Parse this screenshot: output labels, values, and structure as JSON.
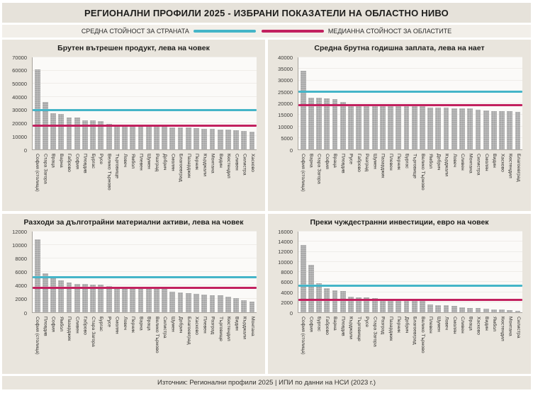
{
  "page": {
    "title": "РЕГИОНАЛНИ ПРОФИЛИ 2025 - ИЗБРАНИ ПОКАЗАТЕЛИ НА ОБЛАСТНО НИВО",
    "source": "Източник: Регионални профили 2025 | ИПИ по данни на НСИ (2023 г.)"
  },
  "legend": {
    "average_label": "СРЕДНА СТОЙНОСТ ЗА СТРАНАТА",
    "median_label": "МЕДИАННА СТОЙНОСТ ЗА ОБЛАСТИТЕ",
    "average_color": "#45b5c8",
    "median_color": "#c2215f"
  },
  "colors": {
    "bar": "#a7a7a7",
    "panel_bg": "#e9e5dd",
    "plot_bg": "#fbfaf8"
  },
  "chart_data": [
    {
      "type": "bar",
      "title": "Брутен вътрешен продукт, лева на човек",
      "ylim": [
        0,
        70000
      ],
      "ytick_step": 10000,
      "average_line": 29000,
      "median_line": 17000,
      "legend_position": "top",
      "grid": false,
      "categories": [
        "София (столица)",
        "Стара Загора",
        "Враца",
        "Варна",
        "Габрово",
        "София",
        "Пловдив",
        "Бургас",
        "Русе",
        "Велико Търново",
        "Търговище",
        "Ловеч",
        "Ямбол",
        "Плевен",
        "Шумен",
        "Разград",
        "Добрич",
        "Смолян",
        "Благоевград",
        "Пазарджик",
        "Перник",
        "Кърджали",
        "Монтана",
        "Видин",
        "Кюстендил",
        "Сливен",
        "Силистра",
        "Хасково"
      ],
      "values": [
        61000,
        36000,
        27500,
        27000,
        24500,
        24000,
        22200,
        22000,
        21500,
        19500,
        18000,
        17300,
        17200,
        17100,
        17100,
        17000,
        17000,
        16900,
        16900,
        16800,
        16000,
        15800,
        15500,
        15000,
        14900,
        14800,
        13800,
        13300
      ]
    },
    {
      "type": "bar",
      "title": "Средна брутна годишна заплата, лева на нает",
      "ylim": [
        0,
        40000
      ],
      "ytick_step": 5000,
      "average_line": 24700,
      "median_line": 18850,
      "legend_position": "top",
      "grid": false,
      "categories": [
        "София (столица)",
        "Варна",
        "Стара Загора",
        "София",
        "Враца",
        "Пловдив",
        "Русе",
        "Габрово",
        "Разград",
        "Шумен",
        "Пазарджик",
        "Плевен",
        "Перник",
        "Бургас",
        "Търговище",
        "Велико Търново",
        "Ямбол",
        "Добрич",
        "Кърджали",
        "Ловеч",
        "Сливен",
        "Монтана",
        "Силистра",
        "Смолян",
        "Видин",
        "Хасково",
        "Кюстендил",
        "Благоевград"
      ],
      "values": [
        34300,
        22600,
        22400,
        22100,
        21900,
        20600,
        19800,
        19200,
        19100,
        19100,
        19000,
        19000,
        19000,
        18900,
        18900,
        18800,
        18300,
        18200,
        18100,
        18000,
        17900,
        17800,
        17100,
        16900,
        16700,
        16600,
        16500,
        16200
      ]
    },
    {
      "type": "bar",
      "title": "Разходи за дълготрайни материални активи, лева на човек",
      "ylim": [
        0,
        12000
      ],
      "ytick_step": 2000,
      "average_line": 5100,
      "median_line": 3500,
      "legend_position": "top",
      "grid": false,
      "categories": [
        "София (столица)",
        "Пловдив",
        "София",
        "Ямбол",
        "Пазарджик",
        "Сливен",
        "Габрово",
        "Стара Загора",
        "Бургас",
        "Русе",
        "Смолян",
        "Ловеч",
        "Перник",
        "Варна",
        "Враца",
        "Велико Търново",
        "Силистра",
        "Шумен",
        "Добрич",
        "Благоевград",
        "Хасково",
        "Плевен",
        "Разград",
        "Търговище",
        "Кюстендил",
        "Видин",
        "Кърджали",
        "Монтана"
      ],
      "values": [
        10800,
        5800,
        5200,
        4700,
        4400,
        4250,
        4200,
        4150,
        4100,
        3900,
        3700,
        3550,
        3550,
        3500,
        3500,
        3500,
        3450,
        3050,
        3000,
        2800,
        2700,
        2650,
        2550,
        2500,
        2350,
        2150,
        1750,
        1550
      ]
    },
    {
      "type": "bar",
      "title": "Преки чуждестранни инвестиции, евро на човек",
      "ylim": [
        0,
        16000
      ],
      "ytick_step": 2000,
      "average_line": 5100,
      "median_line": 2250,
      "legend_position": "top",
      "grid": false,
      "categories": [
        "София (столица)",
        "София",
        "Бургас",
        "Габрово",
        "Варна",
        "Пловдив",
        "Кърджали",
        "Търговище",
        "Русе",
        "Стара Загора",
        "Разград",
        "Пазарджик",
        "Перник",
        "Добрич",
        "Благоевград",
        "Велико Търново",
        "Плевен",
        "Шумен",
        "Ловеч",
        "Смолян",
        "Сливен",
        "Враца",
        "Хасково",
        "Видин",
        "Ямбол",
        "Кюстендил",
        "Монтана",
        "Силистра"
      ],
      "values": [
        13400,
        9400,
        5750,
        4750,
        4300,
        4200,
        3100,
        3000,
        2900,
        2750,
        2650,
        2500,
        2350,
        2300,
        2250,
        2250,
        1600,
        1450,
        1350,
        1300,
        1050,
        900,
        900,
        650,
        500,
        500,
        450,
        300
      ]
    }
  ]
}
